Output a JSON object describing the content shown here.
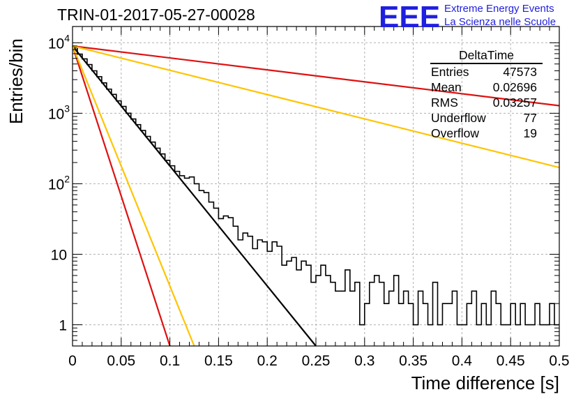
{
  "chart_data": {
    "type": "histogram",
    "title": "TRIN-01-2017-05-27-00028",
    "xlabel": "Time difference [s]",
    "ylabel": "Entries/bin",
    "xlim": [
      0,
      0.5
    ],
    "ylim": [
      0.5,
      17000
    ],
    "yscale": "log",
    "grid": true,
    "x_ticks": [
      "0",
      "0.05",
      "0.1",
      "0.15",
      "0.2",
      "0.25",
      "0.3",
      "0.35",
      "0.4",
      "0.45",
      "0.5"
    ],
    "y_ticks": [
      {
        "value": 1,
        "label": "1"
      },
      {
        "value": 10,
        "label": "10"
      },
      {
        "value": 100,
        "label": "10",
        "exp": "2"
      },
      {
        "value": 1000,
        "label": "10",
        "exp": "3"
      },
      {
        "value": 10000,
        "label": "10",
        "exp": "4"
      }
    ],
    "bin_width": 0.005,
    "histogram_counts": [
      8500,
      6900,
      5900,
      4900,
      4000,
      3300,
      2700,
      2200,
      1850,
      1500,
      1250,
      1000,
      830,
      690,
      570,
      470,
      390,
      320,
      265,
      215,
      180,
      150,
      130,
      120,
      125,
      100,
      80,
      75,
      55,
      45,
      32,
      35,
      33,
      25,
      16,
      20,
      18,
      12,
      16,
      15,
      11,
      15,
      13,
      7,
      8,
      9,
      6,
      8,
      7,
      4,
      5,
      7,
      5,
      4,
      3,
      3,
      6,
      3,
      4,
      1,
      2,
      4,
      5,
      4,
      2,
      3,
      5,
      2,
      3,
      2,
      1,
      3,
      2,
      1,
      4,
      1,
      2,
      2,
      3,
      1,
      1,
      2,
      3,
      1,
      2,
      1,
      3,
      2,
      1,
      1,
      2,
      1,
      2,
      1,
      1,
      2,
      1,
      1,
      2,
      1
    ],
    "fit_lines": [
      {
        "color": "#000000",
        "points": [
          [
            0,
            9000
          ],
          [
            0.25,
            0.5
          ]
        ]
      },
      {
        "color": "#dd1111",
        "points": [
          [
            0,
            9000
          ],
          [
            0.1,
            0.5
          ]
        ]
      },
      {
        "color": "#ffc400",
        "points": [
          [
            0,
            9000
          ],
          [
            0.125,
            0.5
          ]
        ]
      },
      {
        "color": "#dd1111",
        "points": [
          [
            0,
            9000
          ],
          [
            0.5,
            1280
          ]
        ]
      },
      {
        "color": "#ffc400",
        "points": [
          [
            0,
            9000
          ],
          [
            0.5,
            170
          ]
        ]
      }
    ],
    "stats": {
      "title": "DeltaTime",
      "rows": [
        {
          "label": "Entries",
          "value": "47573"
        },
        {
          "label": "Mean",
          "value": "0.02696"
        },
        {
          "label": "RMS",
          "value": "0.03257"
        },
        {
          "label": "Underflow",
          "value": "77"
        },
        {
          "label": "Overflow",
          "value": "19"
        }
      ]
    }
  },
  "logo": {
    "mark": "EEE",
    "line1": "Extreme Energy Events",
    "line2": "La Scienza nelle Scuole"
  }
}
